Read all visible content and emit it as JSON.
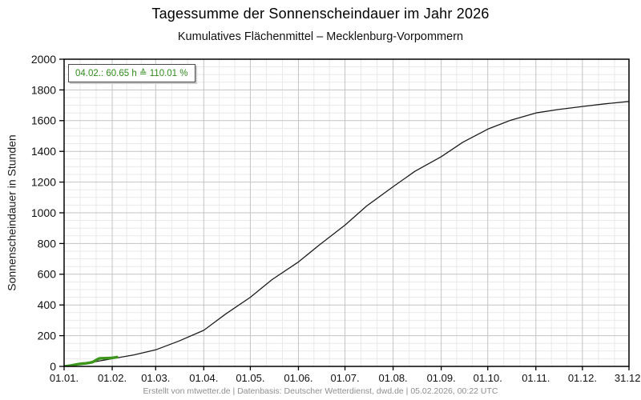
{
  "header": {
    "title": "Tagessumme der Sonnenscheindauer im Jahr 2026",
    "subtitle": "Kumulatives Flächenmittel – Mecklenburg-Vorpommern"
  },
  "annotation": {
    "text": "04.02.: 60.65 h ≙ 110.01 %",
    "date": "04.02.",
    "hours": 60.65,
    "percent_of_mean": 110.01,
    "text_color": "#2e8b1a"
  },
  "footer": {
    "credit": "Erstellt von mtwetter.de | Datenbasis: Deutscher Wetterdienst, dwd.de | 05.02.2026, 00:22 UTC"
  },
  "colors": {
    "axis": "#000000",
    "tick_label": "#111111",
    "grid_major": "#c3c3c3",
    "grid_minor": "#e9e9e9",
    "reference_line": "#1c1c1c",
    "actual_line": "#3c961b"
  },
  "chart_data": {
    "type": "line",
    "title": "Tagessumme der Sonnenscheindauer im Jahr 2026",
    "subtitle": "Kumulatives Flächenmittel – Mecklenburg-Vorpommern",
    "xlabel": "",
    "ylabel": "Sonnenscheindauer in Stunden",
    "ylim": [
      0,
      2000
    ],
    "y_ticks": [
      0,
      200,
      400,
      600,
      800,
      1000,
      1200,
      1400,
      1600,
      1800,
      2000
    ],
    "y_minor_step": 50,
    "grid": true,
    "legend_position": "none",
    "x_tick_labels": [
      "01.01.",
      "01.02.",
      "01.03.",
      "01.04.",
      "01.05.",
      "01.06.",
      "01.07.",
      "01.08.",
      "01.09.",
      "01.10.",
      "01.11.",
      "01.12.",
      "31.12."
    ],
    "x_tick_days": [
      0,
      31,
      59,
      90,
      120,
      151,
      181,
      212,
      243,
      273,
      304,
      334,
      364
    ],
    "month_lengths": [
      31,
      28,
      31,
      30,
      31,
      30,
      31,
      31,
      30,
      31,
      30,
      31
    ],
    "x_minor_divisions_per_month": 3,
    "series": [
      {
        "id": "reference_mean_cumulative",
        "color": "#1c1c1c",
        "stroke_width": 1.3,
        "days": [
          0,
          14,
          31,
          45,
          59,
          74,
          90,
          104,
          120,
          134,
          151,
          165,
          181,
          195,
          212,
          226,
          243,
          257,
          273,
          287,
          304,
          318,
          334,
          349,
          364
        ],
        "values": [
          0,
          20,
          50,
          75,
          108,
          165,
          235,
          340,
          450,
          565,
          680,
          795,
          920,
          1045,
          1170,
          1270,
          1365,
          1460,
          1545,
          1600,
          1650,
          1672,
          1692,
          1710,
          1725
        ]
      },
      {
        "id": "actual_2026_cumulative",
        "color": "#3c961b",
        "stroke_width": 3.4,
        "days": [
          0,
          2,
          4,
          6,
          8,
          10,
          12,
          14,
          16,
          18,
          19,
          20,
          21,
          22,
          23,
          25,
          27,
          30,
          32,
          34
        ],
        "values": [
          0.3,
          2,
          5,
          9,
          13,
          16,
          18,
          20,
          23,
          27,
          31,
          37,
          44,
          49,
          52,
          53,
          53.5,
          54.5,
          57.5,
          60.65
        ]
      }
    ]
  }
}
